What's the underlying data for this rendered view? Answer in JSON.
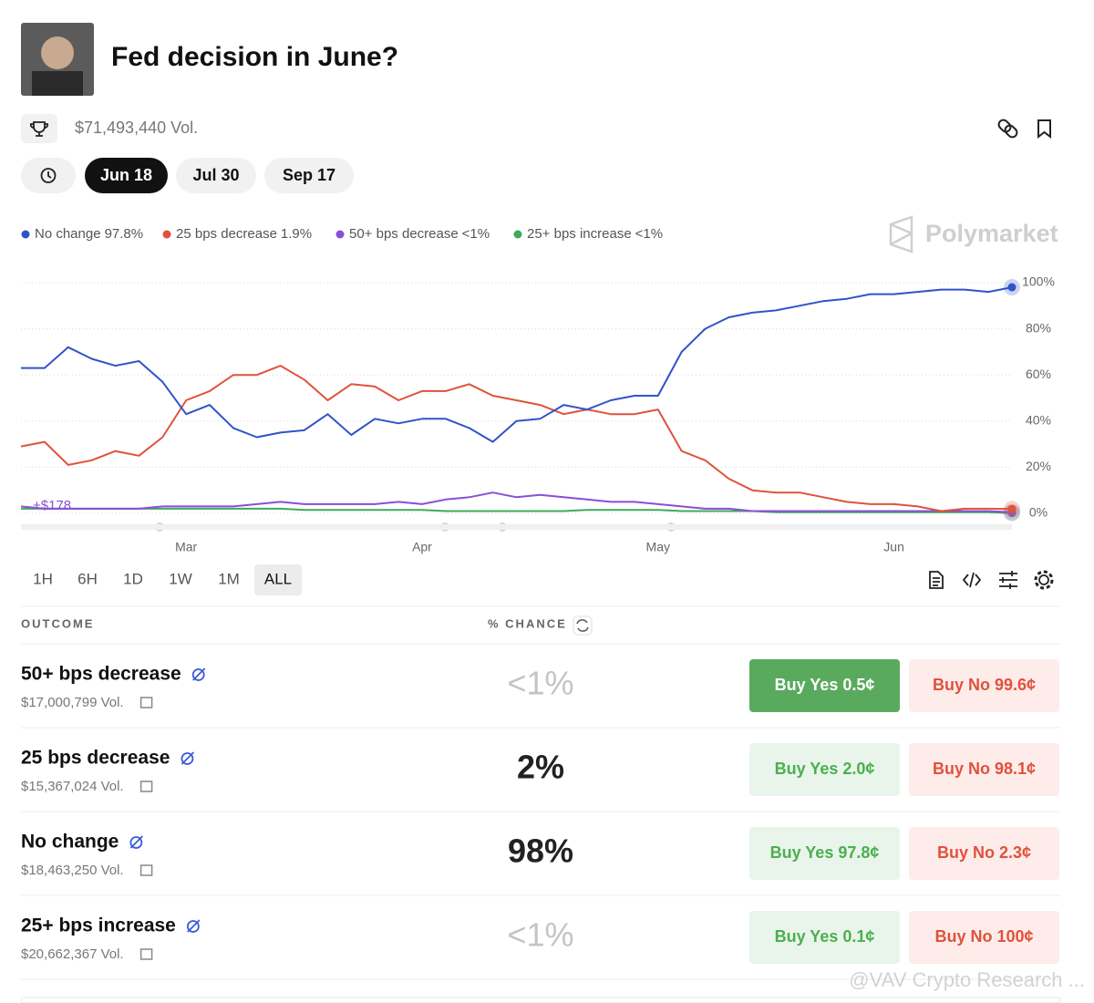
{
  "header": {
    "title": "Fed decision in June?",
    "volume": "$71,493,440 Vol."
  },
  "date_tabs": [
    "Jun 18",
    "Jul 30",
    "Sep 17"
  ],
  "chart_data": {
    "type": "line",
    "categories": [
      null,
      null,
      null,
      null,
      null,
      null,
      null,
      "Mar",
      null,
      null,
      null,
      null,
      null,
      null,
      null,
      null,
      null,
      "Apr",
      null,
      null,
      null,
      null,
      null,
      null,
      null,
      null,
      null,
      "May",
      null,
      null,
      null,
      null,
      null,
      null,
      null,
      null,
      null,
      "Jun",
      null,
      null,
      null,
      null,
      null
    ],
    "series": [
      {
        "name": "No change",
        "legend_value": "97.8%",
        "color": "#2f54c8",
        "values": [
          63,
          63,
          72,
          67,
          64,
          66,
          57,
          43,
          47,
          37,
          33,
          35,
          36,
          43,
          34,
          41,
          39,
          41,
          41,
          37,
          31,
          40,
          41,
          47,
          45,
          49,
          51,
          51,
          70,
          80,
          85,
          87,
          88,
          90,
          92,
          93,
          95,
          95,
          96,
          97,
          97,
          96,
          98
        ]
      },
      {
        "name": "25 bps decrease",
        "legend_value": "1.9%",
        "color": "#e0523c",
        "values": [
          29,
          31,
          21,
          23,
          27,
          25,
          33,
          49,
          53,
          60,
          60,
          64,
          58,
          49,
          56,
          55,
          49,
          53,
          53,
          56,
          51,
          49,
          47,
          43,
          45,
          43,
          43,
          45,
          27,
          23,
          15,
          10,
          9,
          9,
          7,
          5,
          4,
          4,
          3,
          1,
          2,
          2,
          1.9
        ]
      },
      {
        "name": "50+ bps decrease",
        "legend_value": "<1%",
        "color": "#8a4fd6",
        "values": [
          3,
          2,
          2,
          2,
          2,
          2,
          3,
          3,
          3,
          3,
          4,
          5,
          4,
          4,
          4,
          4,
          5,
          4,
          6,
          7,
          9,
          7,
          8,
          7,
          6,
          5,
          5,
          4,
          3,
          2,
          2,
          1,
          1,
          1,
          1,
          1,
          1,
          1,
          1,
          1,
          1,
          1,
          0.5
        ]
      },
      {
        "name": "25+ bps increase",
        "legend_value": "<1%",
        "color": "#3faa5a",
        "values": [
          2,
          2,
          2,
          2,
          2,
          2,
          2,
          2,
          2,
          2,
          2,
          2,
          1.5,
          1.5,
          1.5,
          1.5,
          1.5,
          1.5,
          1,
          1,
          1,
          1,
          1,
          1,
          1.5,
          1.5,
          1.5,
          1.5,
          1,
          1,
          1,
          1,
          0.5,
          0.5,
          0.5,
          0.5,
          0.5,
          0.5,
          0.5,
          0.5,
          0.5,
          0.5,
          0.1
        ]
      }
    ],
    "ylim": [
      0,
      100
    ],
    "yticks": [
      {
        "value": 0,
        "label": "0%"
      },
      {
        "value": 20,
        "label": "20%"
      },
      {
        "value": 40,
        "label": "40%"
      },
      {
        "value": 60,
        "label": "60%"
      },
      {
        "value": 80,
        "label": "80%"
      },
      {
        "value": 100,
        "label": "100%"
      }
    ],
    "grid": true,
    "annotation": "+$178",
    "watermark": "Polymarket"
  },
  "timeframes": [
    "1H",
    "6H",
    "1D",
    "1W",
    "1M",
    "ALL"
  ],
  "table": {
    "headers": [
      "OUTCOME",
      "% CHANCE"
    ],
    "rows": [
      {
        "name": "50+ bps decrease",
        "volume": "$17,000,799 Vol.",
        "chance": "<1%",
        "buy_yes": "Buy Yes 0.5¢",
        "buy_no": "Buy No 99.6¢"
      },
      {
        "name": "25 bps decrease",
        "volume": "$15,367,024 Vol.",
        "chance": "2%",
        "buy_yes": "Buy Yes 2.0¢",
        "buy_no": "Buy No 98.1¢"
      },
      {
        "name": "No change",
        "volume": "$18,463,250 Vol.",
        "chance": "98%",
        "buy_yes": "Buy Yes 97.8¢",
        "buy_no": "Buy No 2.3¢"
      },
      {
        "name": "25+ bps increase",
        "volume": "$20,662,367 Vol.",
        "chance": "<1%",
        "buy_yes": "Buy Yes 0.1¢",
        "buy_no": "Buy No 100¢"
      }
    ]
  },
  "footer_watermark": "@VAV Crypto Research ..."
}
